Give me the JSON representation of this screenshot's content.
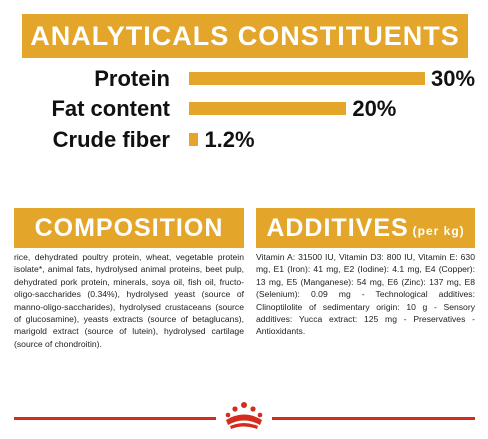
{
  "analytics": {
    "title": "ANALYTICALS CONSTITUENTS",
    "rows": [
      {
        "label": "Protein",
        "value_text": "30%",
        "value": 30
      },
      {
        "label": "Fat content",
        "value_text": "20%",
        "value": 20
      },
      {
        "label": "Crude fiber",
        "value_text": "1.2%",
        "value": 1.2
      }
    ]
  },
  "composition": {
    "title": "COMPOSITION",
    "text": "rice, dehydrated poultry protein, wheat, vegetable protein isolate*, animal fats, hydrolysed animal proteins, beet pulp, dehydrated pork protein, minerals, soya oil, fish oil, fructo-oligo-saccharides (0.34%), hydrolysed yeast (source of manno-oligo-saccharides), hydrolysed crustaceans (source of glucosamine), yeasts extracts (source of betaglucans), marigold extract (source of lutein), hydrolysed cartilage (source of chondroitin)."
  },
  "additives": {
    "title": "ADDITIVES",
    "unit": "(per kg)",
    "text": "Vitamin A: 31500 IU, Vitamin D3: 800 IU, Vitamin E: 630 mg, E1 (Iron): 41 mg, E2 (Iodine): 4.1 mg, E4 (Copper): 13 mg, E5 (Manganese): 54 mg, E6 (Zinc): 137 mg, E8 (Selenium): 0.09 mg - Technological additives: Clinoptilolite of sedimentary origin: 10 g - Sensory additives: Yucca extract: 125 mg - Preservatives - Antioxidants."
  },
  "colors": {
    "accent": "#e3a62a",
    "brand_red": "#d52b1e"
  },
  "logo_icon": "royal-canin-crown-icon"
}
